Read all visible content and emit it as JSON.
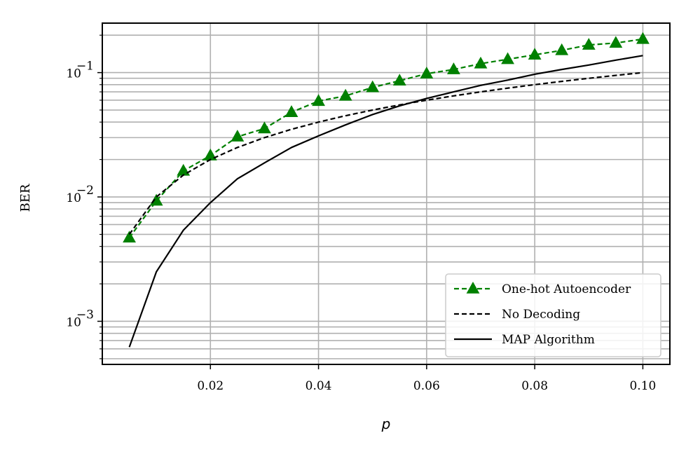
{
  "chart_data": {
    "type": "line",
    "xlabel": "p",
    "ylabel": "BER",
    "xlim": [
      0.0,
      0.105
    ],
    "ylim": [
      0.00045,
      0.25
    ],
    "yscale": "log",
    "grid": "on",
    "legend_placement": "bottom-right",
    "x_ticks": [
      0.02,
      0.04,
      0.06,
      0.08,
      0.1
    ],
    "x_tick_labels": [
      "0.02",
      "0.04",
      "0.06",
      "0.08",
      "0.10"
    ],
    "y_ticks": [
      0.001,
      0.01,
      0.1
    ],
    "y_tick_labels": [
      {
        "base": "10",
        "exp": "−3"
      },
      {
        "base": "10",
        "exp": "−2"
      },
      {
        "base": "10",
        "exp": "−1"
      }
    ],
    "series": [
      {
        "name": "One-hot Autoencoder",
        "color": "#008000",
        "style": "dashed",
        "marker": "triangle",
        "x": [
          0.005,
          0.01,
          0.015,
          0.02,
          0.025,
          0.03,
          0.035,
          0.04,
          0.045,
          0.05,
          0.055,
          0.06,
          0.065,
          0.07,
          0.075,
          0.08,
          0.085,
          0.09,
          0.095,
          0.1
        ],
        "y": [
          0.0047,
          0.0093,
          0.0162,
          0.0215,
          0.0305,
          0.0355,
          0.048,
          0.059,
          0.065,
          0.076,
          0.086,
          0.098,
          0.106,
          0.118,
          0.128,
          0.139,
          0.151,
          0.167,
          0.173,
          0.186
        ]
      },
      {
        "name": "No Decoding",
        "color": "#000000",
        "style": "dashed",
        "marker": "none",
        "x": [
          0.005,
          0.01,
          0.015,
          0.02,
          0.025,
          0.03,
          0.035,
          0.04,
          0.045,
          0.05,
          0.055,
          0.06,
          0.065,
          0.07,
          0.075,
          0.08,
          0.085,
          0.09,
          0.095,
          0.1
        ],
        "y": [
          0.005,
          0.01,
          0.015,
          0.02,
          0.025,
          0.03,
          0.035,
          0.04,
          0.045,
          0.05,
          0.055,
          0.06,
          0.065,
          0.07,
          0.075,
          0.08,
          0.085,
          0.09,
          0.095,
          0.1
        ]
      },
      {
        "name": "MAP Algorithm",
        "color": "#000000",
        "style": "solid",
        "marker": "none",
        "x": [
          0.005,
          0.01,
          0.015,
          0.02,
          0.025,
          0.03,
          0.035,
          0.04,
          0.045,
          0.05,
          0.055,
          0.06,
          0.065,
          0.07,
          0.075,
          0.08,
          0.085,
          0.09,
          0.095,
          0.1
        ],
        "y": [
          0.00062,
          0.0025,
          0.0054,
          0.009,
          0.014,
          0.0188,
          0.025,
          0.031,
          0.038,
          0.046,
          0.054,
          0.062,
          0.07,
          0.079,
          0.087,
          0.097,
          0.106,
          0.115,
          0.126,
          0.137
        ]
      }
    ]
  }
}
